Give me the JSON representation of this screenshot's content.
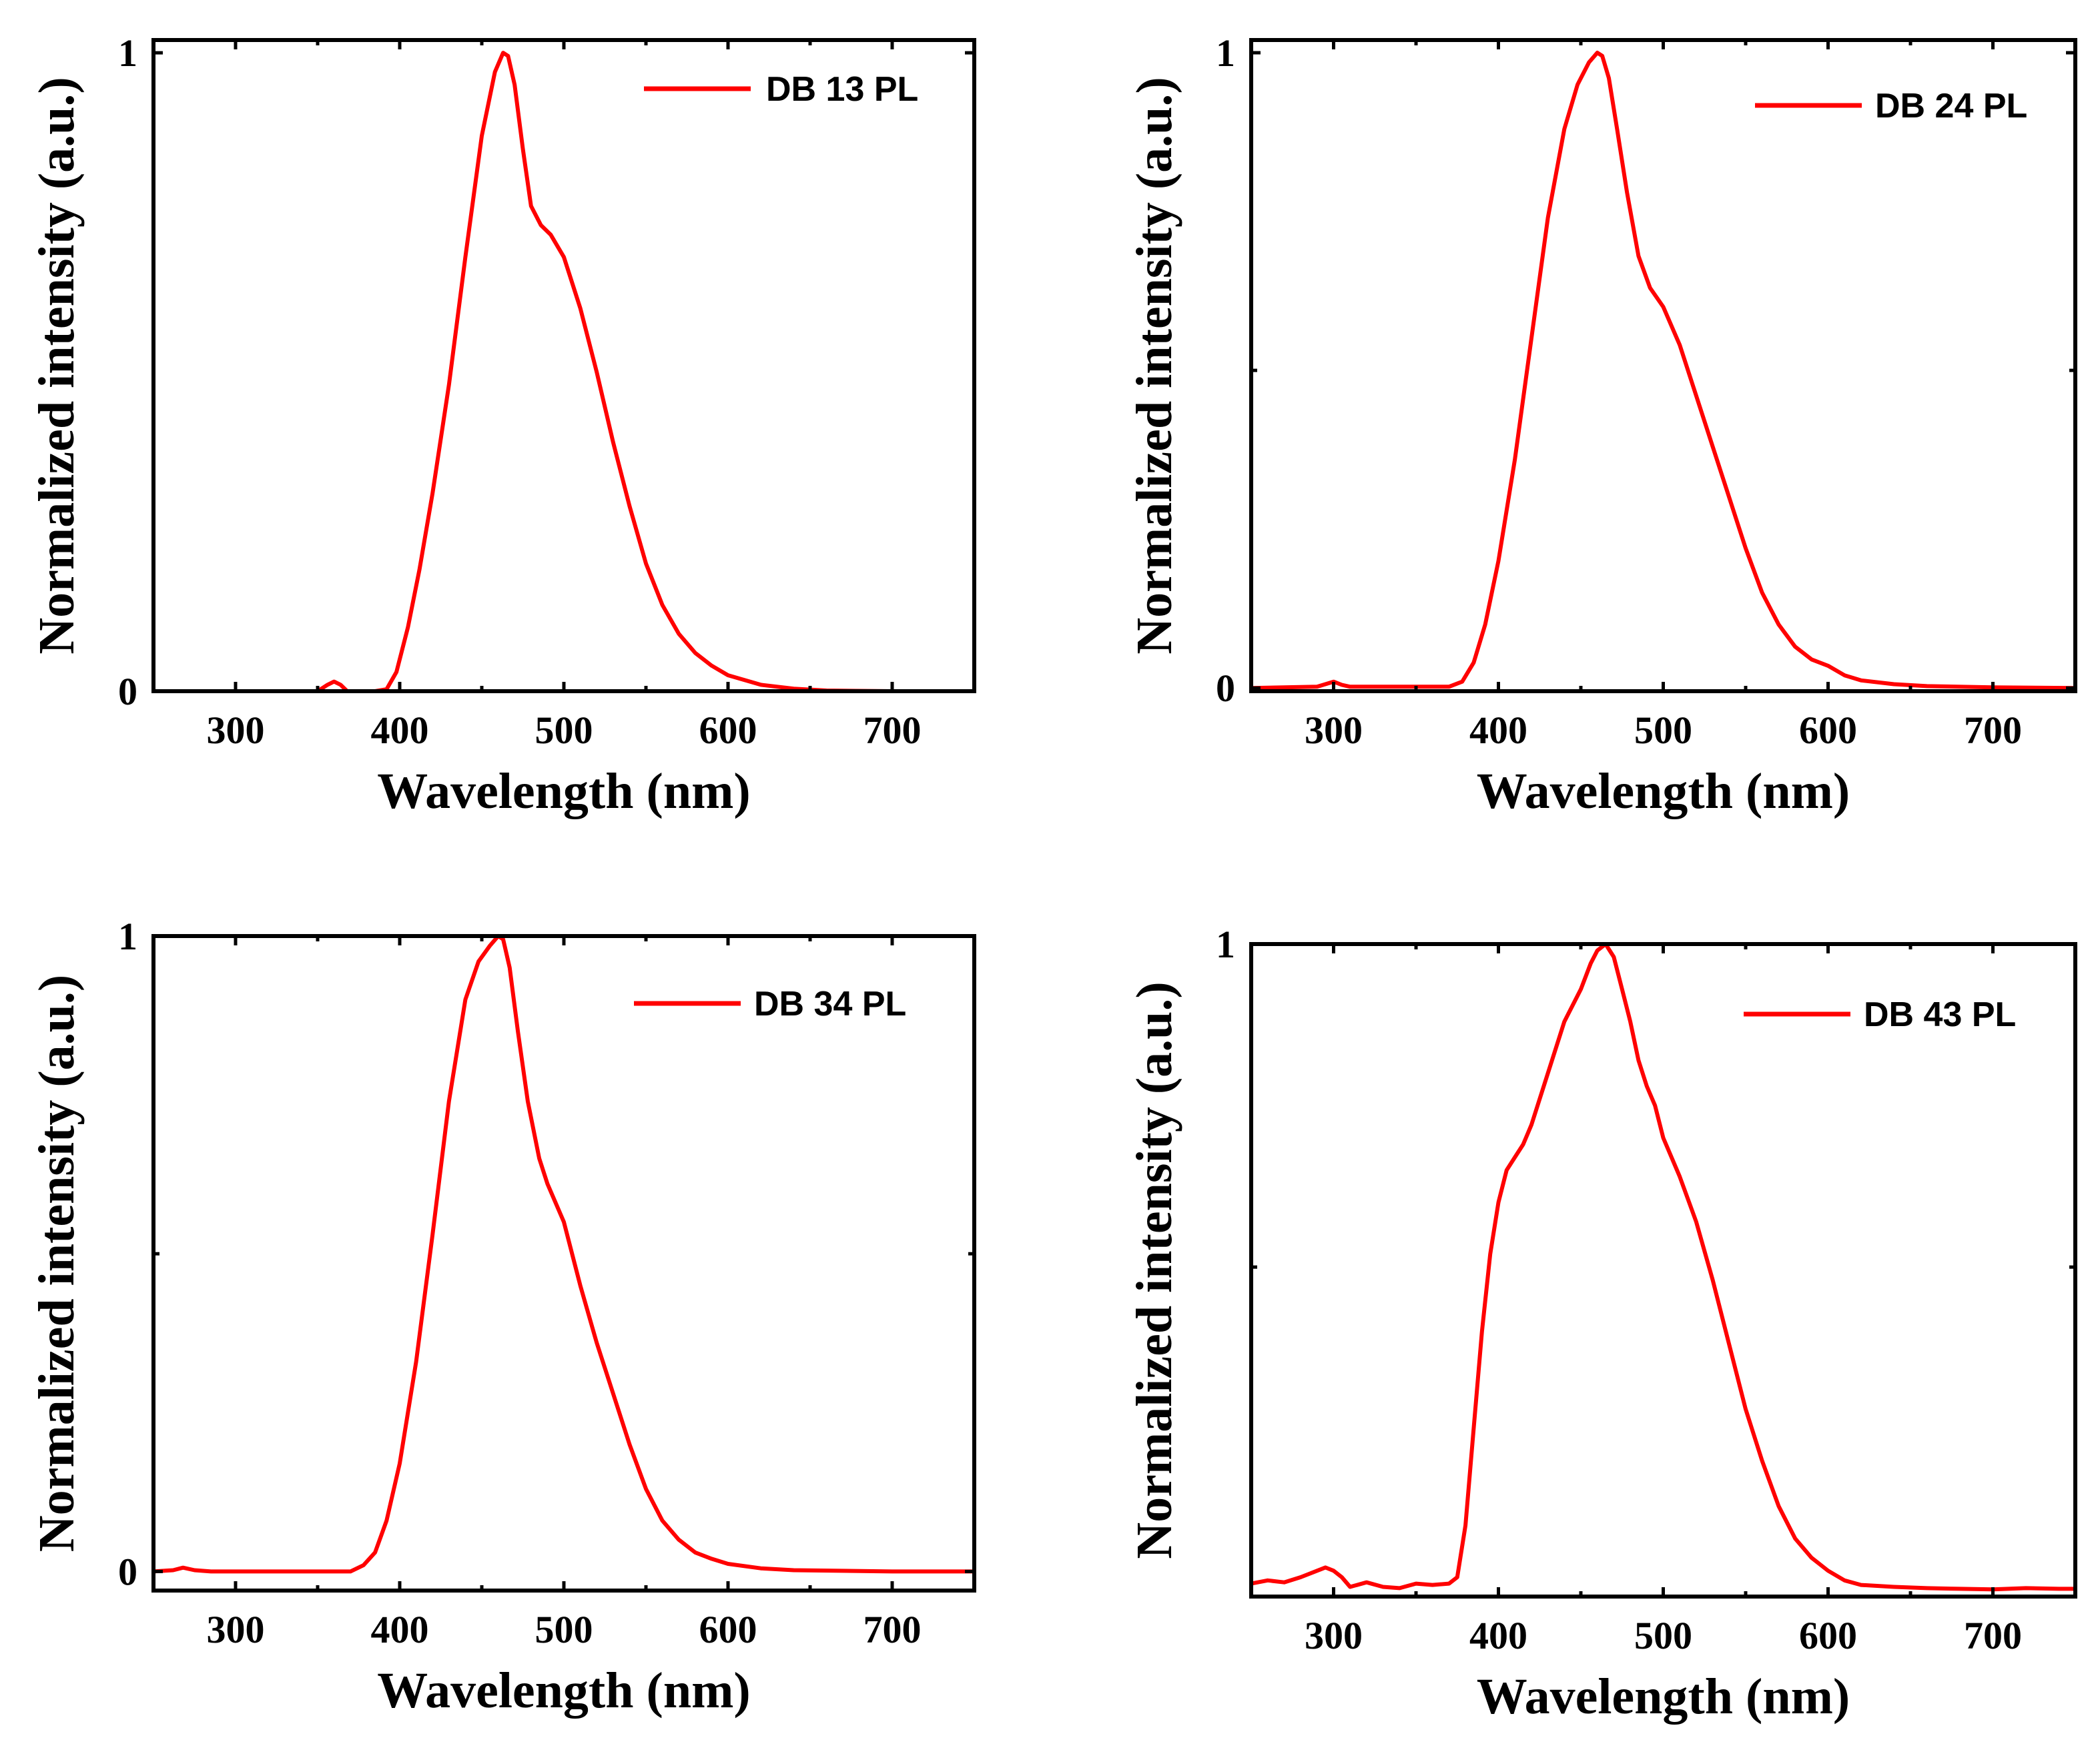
{
  "figure": {
    "panel_count": 4
  },
  "chart_data": [
    {
      "type": "line",
      "panel": "DB 13",
      "title": "",
      "xlabel": "Wavelength (nm)",
      "ylabel": "Normalized intensity (a.u.)",
      "xlim": [
        250,
        750
      ],
      "ylim": [
        0,
        1.02
      ],
      "xticks": [
        300,
        400,
        500,
        600,
        700
      ],
      "yticks": [
        0,
        1
      ],
      "ytick_labels": [
        "0",
        "1"
      ],
      "minor_yticks": [],
      "legend": "top-right",
      "color": "#ff0000",
      "series": [
        {
          "name": "DB 13 PL",
          "x": [
            250,
            350,
            356,
            360,
            364,
            368,
            385,
            392,
            398,
            405,
            412,
            420,
            430,
            440,
            450,
            458,
            463,
            466,
            470,
            475,
            480,
            486,
            492,
            500,
            510,
            520,
            530,
            540,
            550,
            560,
            570,
            580,
            590,
            600,
            620,
            640,
            660,
            700,
            750
          ],
          "y": [
            0,
            0,
            0.01,
            0.015,
            0.01,
            0,
            0,
            0.003,
            0.03,
            0.1,
            0.19,
            0.31,
            0.48,
            0.68,
            0.87,
            0.97,
            1.0,
            0.995,
            0.95,
            0.85,
            0.76,
            0.73,
            0.715,
            0.68,
            0.6,
            0.5,
            0.39,
            0.29,
            0.2,
            0.135,
            0.09,
            0.06,
            0.04,
            0.025,
            0.01,
            0.004,
            0.001,
            0,
            0
          ]
        }
      ]
    },
    {
      "type": "line",
      "panel": "DB 24",
      "title": "",
      "xlabel": "Wavelength (nm)",
      "ylabel": "Normalized intensity (a.u.)",
      "xlim": [
        250,
        750
      ],
      "ylim": [
        -0.005,
        1.02
      ],
      "xticks": [
        300,
        400,
        500,
        600,
        700
      ],
      "yticks": [
        0,
        1
      ],
      "ytick_labels": [
        "0",
        "1"
      ],
      "minor_yticks": [
        0.5
      ],
      "legend": "top-right",
      "color": "#ff0000",
      "series": [
        {
          "name": "DB 24 PL",
          "x": [
            250,
            290,
            295,
            300,
            305,
            310,
            370,
            378,
            385,
            392,
            400,
            410,
            420,
            430,
            440,
            448,
            455,
            460,
            463,
            467,
            472,
            478,
            485,
            492,
            500,
            510,
            520,
            530,
            540,
            550,
            560,
            570,
            580,
            590,
            600,
            610,
            620,
            640,
            660,
            700,
            750
          ],
          "y": [
            0,
            0.002,
            0.006,
            0.01,
            0.005,
            0.002,
            0.002,
            0.01,
            0.04,
            0.1,
            0.2,
            0.36,
            0.55,
            0.74,
            0.88,
            0.95,
            0.985,
            1.0,
            0.995,
            0.96,
            0.88,
            0.78,
            0.68,
            0.63,
            0.6,
            0.54,
            0.46,
            0.38,
            0.3,
            0.22,
            0.15,
            0.1,
            0.065,
            0.045,
            0.035,
            0.02,
            0.012,
            0.006,
            0.003,
            0.001,
            0
          ]
        }
      ]
    },
    {
      "type": "line",
      "panel": "DB 34",
      "title": "",
      "xlabel": "Wavelength (nm)",
      "ylabel": "Normalized intensity (a.u.)",
      "xlim": [
        250,
        750
      ],
      "ylim": [
        -0.03,
        1.0
      ],
      "xticks": [
        300,
        400,
        500,
        600,
        700
      ],
      "yticks": [
        0,
        1
      ],
      "ytick_labels": [
        "0",
        "1"
      ],
      "minor_yticks": [
        0.5
      ],
      "legend": "top-right",
      "color": "#ff0000",
      "series": [
        {
          "name": "DB 34 PL",
          "x": [
            250,
            262,
            268,
            275,
            285,
            370,
            378,
            385,
            392,
            400,
            410,
            420,
            430,
            440,
            448,
            455,
            460,
            463,
            467,
            472,
            478,
            485,
            490,
            500,
            510,
            520,
            530,
            540,
            550,
            560,
            570,
            580,
            590,
            600,
            620,
            640,
            700,
            750
          ],
          "y": [
            0,
            0.002,
            0.006,
            0.002,
            0,
            0,
            0.01,
            0.03,
            0.08,
            0.17,
            0.33,
            0.53,
            0.74,
            0.9,
            0.96,
            0.985,
            1.0,
            0.995,
            0.95,
            0.85,
            0.74,
            0.65,
            0.61,
            0.55,
            0.45,
            0.36,
            0.28,
            0.2,
            0.13,
            0.08,
            0.05,
            0.03,
            0.02,
            0.012,
            0.005,
            0.002,
            0,
            0
          ]
        }
      ]
    },
    {
      "type": "line",
      "panel": "DB 43",
      "title": "",
      "xlabel": "Wavelength (nm)",
      "ylabel": "Normalized intensity (a.u.)",
      "xlim": [
        250,
        750
      ],
      "ylim": [
        -0.01,
        1.0
      ],
      "xticks": [
        300,
        400,
        500,
        600,
        700
      ],
      "yticks": [
        1
      ],
      "ytick_labels": [
        "1"
      ],
      "minor_yticks": [
        0.5
      ],
      "legend": "top-right",
      "color": "#ff0000",
      "series": [
        {
          "name": "DB 43 PL",
          "x": [
            250,
            260,
            270,
            280,
            290,
            295,
            300,
            305,
            310,
            320,
            330,
            340,
            350,
            360,
            370,
            375,
            380,
            385,
            390,
            395,
            400,
            405,
            410,
            415,
            420,
            430,
            440,
            450,
            456,
            460,
            465,
            470,
            475,
            480,
            485,
            490,
            495,
            500,
            510,
            520,
            530,
            540,
            550,
            560,
            570,
            580,
            590,
            600,
            610,
            620,
            640,
            660,
            680,
            700,
            720,
            740,
            750
          ],
          "y": [
            0.01,
            0.015,
            0.012,
            0.02,
            0.03,
            0.035,
            0.03,
            0.02,
            0.005,
            0.012,
            0.005,
            0.003,
            0.01,
            0.008,
            0.01,
            0.02,
            0.1,
            0.25,
            0.4,
            0.52,
            0.6,
            0.65,
            0.67,
            0.69,
            0.72,
            0.8,
            0.88,
            0.93,
            0.97,
            0.99,
            1.0,
            0.98,
            0.93,
            0.88,
            0.82,
            0.78,
            0.75,
            0.7,
            0.64,
            0.57,
            0.48,
            0.38,
            0.28,
            0.2,
            0.13,
            0.08,
            0.05,
            0.03,
            0.015,
            0.008,
            0.005,
            0.003,
            0.002,
            0.001,
            0.003,
            0.002,
            0.002
          ]
        }
      ]
    }
  ]
}
